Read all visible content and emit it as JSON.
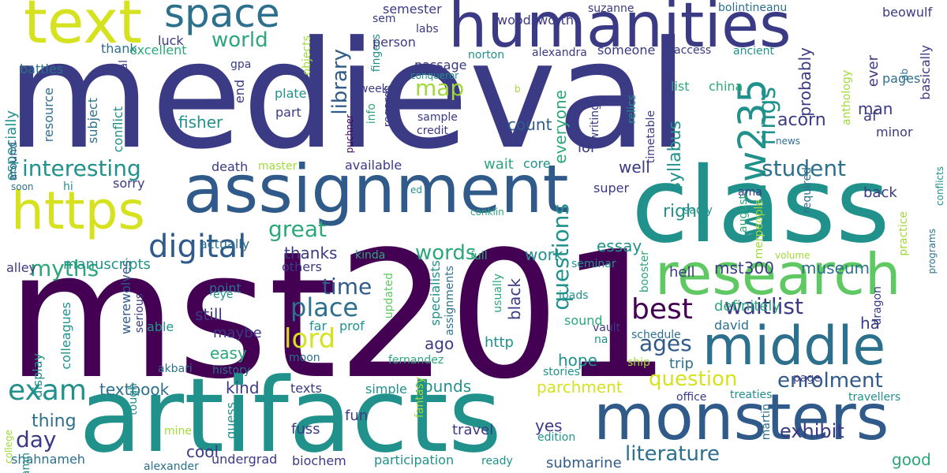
{
  "palette": {
    "dark_purple": "#440154",
    "indigo": "#3b3a84",
    "slate_blue": "#2f5a8a",
    "steel": "#2d708e",
    "teal": "#21918c",
    "green_teal": "#2ca77a",
    "green": "#5ec962",
    "lime": "#a0da39",
    "yellow": "#d6e21f"
  },
  "words": [
    {
      "text": "medieval",
      "color": "indigo"
    },
    {
      "text": "mst201",
      "color": "dark_purple"
    },
    {
      "text": "artifacts",
      "color": "teal"
    },
    {
      "text": "class",
      "color": "teal"
    },
    {
      "text": "assignment",
      "color": "slate_blue"
    },
    {
      "text": "humanities",
      "color": "indigo"
    },
    {
      "text": "text",
      "color": "yellow"
    },
    {
      "text": "monsters",
      "color": "slate_blue"
    },
    {
      "text": "research",
      "color": "green"
    },
    {
      "text": "https",
      "color": "yellow"
    },
    {
      "text": "middle",
      "color": "steel"
    },
    {
      "text": "space",
      "color": "steel"
    },
    {
      "text": "wdw235",
      "color": "teal"
    },
    {
      "text": "digital",
      "color": "slate_blue"
    },
    {
      "text": "best",
      "color": "dark_purple"
    },
    {
      "text": "exam",
      "color": "teal"
    },
    {
      "text": "literature",
      "color": "steel"
    },
    {
      "text": "enrolment",
      "color": "slate_blue"
    },
    {
      "text": "interesting",
      "color": "teal"
    },
    {
      "text": "waitlist",
      "color": "indigo"
    },
    {
      "text": "lord",
      "color": "yellow"
    },
    {
      "text": "myths",
      "color": "green_teal"
    },
    {
      "text": "world",
      "color": "green_teal"
    },
    {
      "text": "rings",
      "color": "teal"
    },
    {
      "text": "library",
      "color": "slate_blue"
    },
    {
      "text": "question",
      "color": "yellow"
    },
    {
      "text": "questions",
      "color": "teal"
    },
    {
      "text": "ages",
      "color": "slate_blue"
    },
    {
      "text": "student",
      "color": "steel"
    },
    {
      "text": "great",
      "color": "green_teal"
    },
    {
      "text": "words",
      "color": "green_teal"
    },
    {
      "text": "place",
      "color": "steel"
    },
    {
      "text": "time",
      "color": "slate_blue"
    },
    {
      "text": "exhibit",
      "color": "indigo"
    },
    {
      "text": "day",
      "color": "indigo"
    },
    {
      "text": "map",
      "color": "lime"
    },
    {
      "text": "parchment",
      "color": "yellow"
    },
    {
      "text": "monsters",
      "color": "slate_blue"
    },
    {
      "text": "thing",
      "color": "steel"
    },
    {
      "text": "museum",
      "color": "steel"
    },
    {
      "text": "right",
      "color": "teal"
    },
    {
      "text": "essay",
      "color": "teal"
    },
    {
      "text": "acorn",
      "color": "indigo"
    },
    {
      "text": "well",
      "color": "indigo"
    },
    {
      "text": "definitely",
      "color": "green_teal"
    },
    {
      "text": "syllabus",
      "color": "teal"
    },
    {
      "text": "probably",
      "color": "indigo"
    },
    {
      "text": "everyone",
      "color": "green_teal"
    },
    {
      "text": "count",
      "color": "slate_blue"
    },
    {
      "text": "fisher",
      "color": "teal"
    },
    {
      "text": "kind",
      "color": "indigo"
    },
    {
      "text": "sounds",
      "color": "teal"
    },
    {
      "text": "textbook",
      "color": "steel"
    },
    {
      "text": "manuscripts",
      "color": "teal"
    },
    {
      "text": "especially",
      "color": "teal"
    },
    {
      "text": "thanks",
      "color": "indigo"
    },
    {
      "text": "work",
      "color": "teal"
    },
    {
      "text": "man",
      "color": "indigo"
    },
    {
      "text": "ever",
      "color": "indigo"
    },
    {
      "text": "hope",
      "color": "teal"
    },
    {
      "text": "ago",
      "color": "indigo"
    },
    {
      "text": "trip",
      "color": "steel"
    },
    {
      "text": "easy",
      "color": "green_teal"
    },
    {
      "text": "still",
      "color": "indigo"
    },
    {
      "text": "mst300",
      "color": "indigo"
    },
    {
      "text": "hell",
      "color": "indigo"
    },
    {
      "text": "ha",
      "color": "indigo"
    },
    {
      "text": "david",
      "color": "steel"
    },
    {
      "text": "werewolves",
      "color": "slate_blue"
    },
    {
      "text": "cool",
      "color": "indigo"
    },
    {
      "text": "good",
      "color": "green_teal"
    },
    {
      "text": "fuss",
      "color": "indigo"
    },
    {
      "text": "fun",
      "color": "indigo"
    },
    {
      "text": "yes",
      "color": "indigo"
    },
    {
      "text": "travel",
      "color": "indigo"
    },
    {
      "text": "black",
      "color": "indigo"
    },
    {
      "text": "http",
      "color": "teal"
    },
    {
      "text": "submarine",
      "color": "slate_blue"
    },
    {
      "text": "participation",
      "color": "teal"
    },
    {
      "text": "biochem",
      "color": "indigo"
    },
    {
      "text": "undergrad",
      "color": "indigo"
    },
    {
      "text": "shahnameh",
      "color": "steel"
    },
    {
      "text": "alexander",
      "color": "steel"
    },
    {
      "text": "damn",
      "color": "teal"
    },
    {
      "text": "simple",
      "color": "teal"
    },
    {
      "text": "texts",
      "color": "indigo"
    },
    {
      "text": "guess",
      "color": "teal"
    },
    {
      "text": "maybe",
      "color": "indigo"
    },
    {
      "text": "far",
      "color": "teal"
    },
    {
      "text": "prof",
      "color": "teal"
    },
    {
      "text": "point",
      "color": "steel"
    },
    {
      "text": "others",
      "color": "indigo"
    },
    {
      "text": "actually",
      "color": "steel"
    },
    {
      "text": "alley",
      "color": "indigo"
    },
    {
      "text": "able",
      "color": "teal"
    },
    {
      "text": "colleagues",
      "color": "teal"
    },
    {
      "text": "display",
      "color": "teal"
    },
    {
      "text": "history",
      "color": "steel"
    },
    {
      "text": "moon",
      "color": "steel"
    },
    {
      "text": "eye",
      "color": "teal"
    },
    {
      "text": "akbari",
      "color": "steel"
    },
    {
      "text": "serious",
      "color": "indigo"
    },
    {
      "text": "tough",
      "color": "teal"
    },
    {
      "text": "mine",
      "color": "lime"
    },
    {
      "text": "ready",
      "color": "teal"
    },
    {
      "text": "edition",
      "color": "teal"
    },
    {
      "text": "fantasy",
      "color": "lime"
    },
    {
      "text": "fernandez",
      "color": "green_teal"
    },
    {
      "text": "updated",
      "color": "green"
    },
    {
      "text": "specialists",
      "color": "teal"
    },
    {
      "text": "assignments",
      "color": "steel"
    },
    {
      "text": "usually",
      "color": "green_teal"
    },
    {
      "text": "sound",
      "color": "green_teal"
    },
    {
      "text": "vault",
      "color": "indigo"
    },
    {
      "text": "na",
      "color": "teal"
    },
    {
      "text": "stories",
      "color": "teal"
    },
    {
      "text": "ship",
      "color": "lime"
    },
    {
      "text": "ipads",
      "color": "teal"
    },
    {
      "text": "schedule",
      "color": "steel"
    },
    {
      "text": "booster",
      "color": "green_teal"
    },
    {
      "text": "seminar",
      "color": "teal"
    },
    {
      "text": "super",
      "color": "indigo"
    },
    {
      "text": "august",
      "color": "green_teal"
    },
    {
      "text": "ama",
      "color": "indigo"
    },
    {
      "text": "sadly",
      "color": "teal"
    },
    {
      "text": "merpeople",
      "color": "lime"
    },
    {
      "text": "volume",
      "color": "lime"
    },
    {
      "text": "required",
      "color": "steel"
    },
    {
      "text": "practice",
      "color": "lime"
    },
    {
      "text": "programs",
      "color": "steel"
    },
    {
      "text": "conflicts",
      "color": "teal"
    },
    {
      "text": "dragon",
      "color": "indigo"
    },
    {
      "text": "page",
      "color": "indigo"
    },
    {
      "text": "martin",
      "color": "steel"
    },
    {
      "text": "treaties",
      "color": "teal"
    },
    {
      "text": "travellers",
      "color": "teal"
    },
    {
      "text": "office",
      "color": "indigo"
    },
    {
      "text": "back",
      "color": "indigo"
    },
    {
      "text": "wait",
      "color": "green_teal"
    },
    {
      "text": "core",
      "color": "teal"
    },
    {
      "text": "timetable",
      "color": "indigo"
    },
    {
      "text": "af",
      "color": "indigo"
    },
    {
      "text": "minor",
      "color": "indigo"
    },
    {
      "text": "news",
      "color": "steel"
    },
    {
      "text": "basically",
      "color": "indigo"
    },
    {
      "text": "ab",
      "color": "steel"
    },
    {
      "text": "pages",
      "color": "steel"
    },
    {
      "text": "anthology",
      "color": "lime"
    },
    {
      "text": "bolintineanu",
      "color": "steel"
    },
    {
      "text": "beowulf",
      "color": "indigo"
    },
    {
      "text": "ancient",
      "color": "teal"
    },
    {
      "text": "access",
      "color": "indigo"
    },
    {
      "text": "someone",
      "color": "indigo"
    },
    {
      "text": "relics",
      "color": "teal"
    },
    {
      "text": "list",
      "color": "green_teal"
    },
    {
      "text": "china",
      "color": "green_teal"
    },
    {
      "text": "writing",
      "color": "indigo"
    },
    {
      "text": "lol",
      "color": "indigo"
    },
    {
      "text": "woodsworth",
      "color": "indigo"
    },
    {
      "text": "suzanne",
      "color": "indigo"
    },
    {
      "text": "semester",
      "color": "indigo"
    },
    {
      "text": "sem",
      "color": "indigo"
    },
    {
      "text": "labs",
      "color": "indigo"
    },
    {
      "text": "fingers",
      "color": "teal"
    },
    {
      "text": "person",
      "color": "indigo"
    },
    {
      "text": "norton",
      "color": "teal"
    },
    {
      "text": "alexandra",
      "color": "indigo"
    },
    {
      "text": "passage",
      "color": "indigo"
    },
    {
      "text": "conqueror",
      "color": "teal"
    },
    {
      "text": "regards",
      "color": "indigo"
    },
    {
      "text": "info",
      "color": "green_teal"
    },
    {
      "text": "sample",
      "color": "indigo"
    },
    {
      "text": "credit",
      "color": "indigo"
    },
    {
      "text": "week",
      "color": "indigo"
    },
    {
      "text": "b",
      "color": "lime"
    },
    {
      "text": "puchner",
      "color": "dark_purple"
    },
    {
      "text": "available",
      "color": "indigo"
    },
    {
      "text": "master",
      "color": "lime"
    },
    {
      "text": "death",
      "color": "indigo"
    },
    {
      "text": "end",
      "color": "indigo"
    },
    {
      "text": "gpa",
      "color": "indigo"
    },
    {
      "text": "plate",
      "color": "teal"
    },
    {
      "text": "part",
      "color": "indigo"
    },
    {
      "text": "objects",
      "color": "lime"
    },
    {
      "text": "luck",
      "color": "indigo"
    },
    {
      "text": "thank",
      "color": "steel"
    },
    {
      "text": "excellent",
      "color": "green_teal"
    },
    {
      "text": "battles",
      "color": "steel"
    },
    {
      "text": "al",
      "color": "indigo"
    },
    {
      "text": "resource",
      "color": "steel"
    },
    {
      "text": "subject",
      "color": "steel"
    },
    {
      "text": "conflict",
      "color": "teal"
    },
    {
      "text": "sorry",
      "color": "indigo"
    },
    {
      "text": "hi",
      "color": "teal"
    },
    {
      "text": "soon",
      "color": "steel"
    },
    {
      "text": "around",
      "color": "slate_blue"
    },
    {
      "text": "ed",
      "color": "teal"
    },
    {
      "text": "conklin",
      "color": "green_teal"
    },
    {
      "text": "kinda",
      "color": "green_teal"
    },
    {
      "text": "full",
      "color": "green_teal"
    },
    {
      "text": "college",
      "color": "lime"
    }
  ]
}
